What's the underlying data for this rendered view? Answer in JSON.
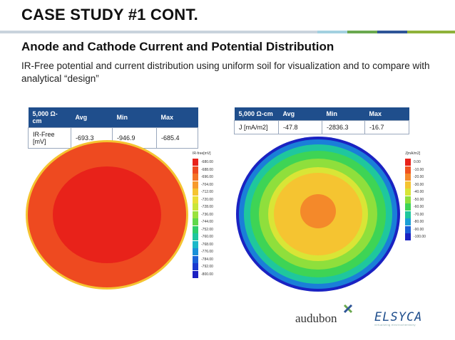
{
  "slide": {
    "title": "CASE STUDY #1 CONT.",
    "subtitle": "Anode and Cathode Current and Potential Distribution",
    "body": "IR-Free potential and current distribution using uniform soil for visualization and to compare with analytical “design”"
  },
  "title_bar_colors": [
    "#c9d3dd",
    "#a3d0e0",
    "#6aa84f",
    "#2f5597",
    "#8fb23a"
  ],
  "tables": {
    "left": {
      "headers": [
        "5,000 Ω-cm",
        "Avg",
        "Min",
        "Max"
      ],
      "row": [
        "IR-Free [mV]",
        "-693.3",
        "-946.9",
        "-685.4"
      ]
    },
    "right": {
      "headers": [
        "5,000 Ω-cm",
        "Avg",
        "Min",
        "Max"
      ],
      "row": [
        "J [mA/m2]",
        "-47.8",
        "-2836.3",
        "-16.7"
      ]
    }
  },
  "legends": {
    "left": {
      "title": "IR-free[mV]",
      "labels": [
        "-680.00",
        "-688.00",
        "-696.00",
        "-704.00",
        "-712.00",
        "-720.00",
        "-728.00",
        "-736.00",
        "-744.00",
        "-752.00",
        "-760.00",
        "-768.00",
        "-776.00",
        "-784.00",
        "-792.00",
        "-800.00"
      ],
      "colors": [
        "#e8221a",
        "#ee4a20",
        "#f47326",
        "#f79a2c",
        "#f5c431",
        "#eadf36",
        "#c9e63a",
        "#99e23d",
        "#5fd84a",
        "#2ecf6a",
        "#1fc79d",
        "#1ab8c8",
        "#1a90d8",
        "#1a62d8",
        "#1a3ad0",
        "#1a1fc2"
      ]
    },
    "right": {
      "title": "J[mA/m2]",
      "labels": [
        "0.00",
        "-10.00",
        "-20.00",
        "-30.00",
        "-40.00",
        "-50.00",
        "-60.00",
        "-70.00",
        "-80.00",
        "-90.00",
        "-100.00"
      ],
      "colors": [
        "#e8221a",
        "#f0521f",
        "#f4892a",
        "#f5c431",
        "#d9e536",
        "#8fdf3c",
        "#3ed455",
        "#1fc79d",
        "#1a9fd6",
        "#1a5fd8",
        "#1a22c2"
      ]
    }
  },
  "logos": {
    "audubon": "audubon",
    "elsyca": "ELSYCA",
    "elsyca_tag": "virtualizing electrochemistry"
  }
}
